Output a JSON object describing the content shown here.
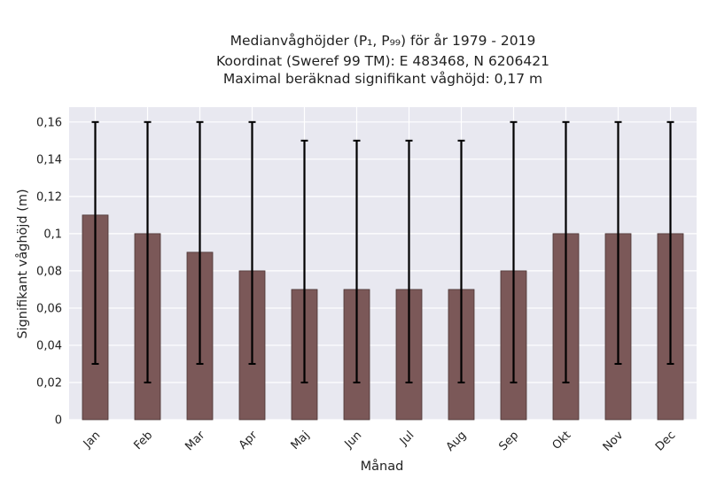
{
  "chart_data": {
    "type": "bar",
    "title_lines": [
      "Medianvåghöjder (P₁, P₉₉) för år 1979 - 2019",
      "Koordinat (Sweref 99 TM): E 483468, N 6206421",
      "Maximal beräknad signifikant våghöjd: 0,17 m"
    ],
    "xlabel": "Månad",
    "ylabel": "Signifikant våghöjd (m)",
    "categories": [
      "Jan",
      "Feb",
      "Mar",
      "Apr",
      "Maj",
      "Jun",
      "Jul",
      "Aug",
      "Sep",
      "Okt",
      "Nov",
      "Dec"
    ],
    "values": [
      0.11,
      0.1,
      0.09,
      0.08,
      0.07,
      0.07,
      0.07,
      0.07,
      0.08,
      0.1,
      0.1,
      0.1
    ],
    "error_low": [
      0.03,
      0.02,
      0.03,
      0.03,
      0.02,
      0.02,
      0.02,
      0.02,
      0.02,
      0.02,
      0.03,
      0.03
    ],
    "error_high": [
      0.16,
      0.16,
      0.16,
      0.16,
      0.15,
      0.15,
      0.15,
      0.15,
      0.16,
      0.16,
      0.16,
      0.16
    ],
    "ylim": [
      0,
      0.168
    ],
    "yticks": [
      0,
      0.02,
      0.04,
      0.06,
      0.08,
      0.1,
      0.12,
      0.14,
      0.16
    ],
    "ytick_labels": [
      "0",
      "0,02",
      "0,04",
      "0,06",
      "0,08",
      "0,1",
      "0,12",
      "0,14",
      "0,16"
    ],
    "grid": true,
    "colors": {
      "bar": "#7b5858",
      "bar_edge": "#4a3434",
      "error_bar": "#000000",
      "plot_background": "#e8e8f0",
      "grid": "#ffffff"
    }
  }
}
